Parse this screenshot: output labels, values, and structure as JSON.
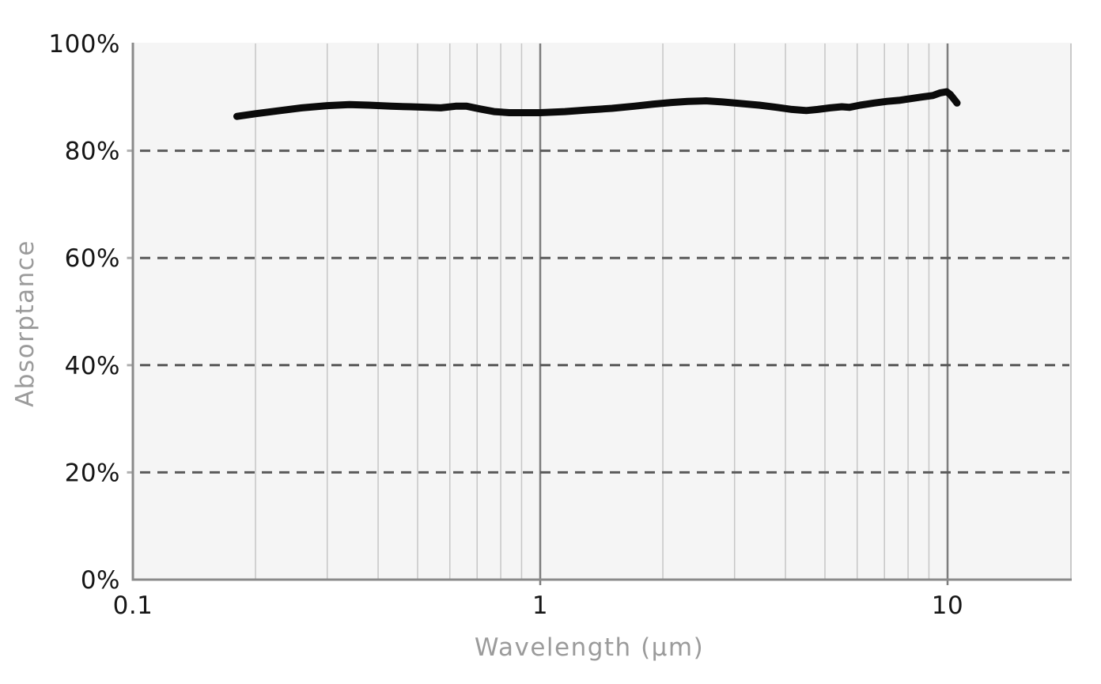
{
  "colors": {
    "page_background": "#ffffff",
    "plot_background": "#f5f5f5",
    "curve": "#0b0b0b",
    "tick_label": "#161616",
    "axis_title": "#9b9b9b",
    "minor_gridline": "#c6c6c6",
    "major_gridline": "#7d7d7d",
    "dashed_gridline": "#5a5a5a",
    "axis_line": "#8a8a8a",
    "right_border": "#c9c9c9",
    "y_tick_mark": "#b0b0b0"
  },
  "chart_data": {
    "type": "line",
    "title": "",
    "xlabel": "Wavelength (μm)",
    "ylabel": "Absorptance",
    "x_scale": "log",
    "x_range": [
      0.1,
      20
    ],
    "y_range": [
      0,
      100
    ],
    "grid": "on",
    "legend": "none",
    "x_major_ticks": [
      {
        "value": 0.1,
        "label": "0.1"
      },
      {
        "value": 1,
        "label": "1"
      },
      {
        "value": 10,
        "label": "10"
      }
    ],
    "x_minor_gridlines": [
      0.2,
      0.3,
      0.4,
      0.5,
      0.6,
      0.7,
      0.8,
      0.9,
      2,
      3,
      4,
      5,
      6,
      7,
      8,
      9
    ],
    "x_major_gridlines": [
      1,
      10
    ],
    "y_ticks": [
      {
        "value": 0,
        "label": "0%"
      },
      {
        "value": 20,
        "label": "20%"
      },
      {
        "value": 40,
        "label": "40%"
      },
      {
        "value": 60,
        "label": "60%"
      },
      {
        "value": 80,
        "label": "80%"
      },
      {
        "value": 100,
        "label": "100%"
      }
    ],
    "y_dashed_gridlines": [
      20,
      40,
      60,
      80
    ],
    "series": [
      {
        "name": "Absorptance",
        "color": "#0b0b0b",
        "stroke_width": 9,
        "points": [
          [
            0.18,
            86.4
          ],
          [
            0.2,
            86.9
          ],
          [
            0.23,
            87.5
          ],
          [
            0.26,
            88.0
          ],
          [
            0.3,
            88.4
          ],
          [
            0.34,
            88.6
          ],
          [
            0.38,
            88.5
          ],
          [
            0.43,
            88.3
          ],
          [
            0.48,
            88.2
          ],
          [
            0.53,
            88.1
          ],
          [
            0.57,
            88.0
          ],
          [
            0.62,
            88.3
          ],
          [
            0.66,
            88.3
          ],
          [
            0.71,
            87.8
          ],
          [
            0.77,
            87.3
          ],
          [
            0.84,
            87.1
          ],
          [
            0.92,
            87.1
          ],
          [
            1.0,
            87.1
          ],
          [
            1.15,
            87.3
          ],
          [
            1.3,
            87.6
          ],
          [
            1.5,
            87.9
          ],
          [
            1.7,
            88.3
          ],
          [
            1.9,
            88.7
          ],
          [
            2.1,
            89.0
          ],
          [
            2.3,
            89.2
          ],
          [
            2.55,
            89.3
          ],
          [
            2.8,
            89.1
          ],
          [
            3.1,
            88.8
          ],
          [
            3.45,
            88.5
          ],
          [
            3.8,
            88.1
          ],
          [
            4.15,
            87.7
          ],
          [
            4.5,
            87.5
          ],
          [
            4.8,
            87.7
          ],
          [
            5.15,
            88.0
          ],
          [
            5.5,
            88.2
          ],
          [
            5.75,
            88.1
          ],
          [
            6.1,
            88.5
          ],
          [
            6.6,
            88.9
          ],
          [
            7.1,
            89.2
          ],
          [
            7.6,
            89.4
          ],
          [
            8.1,
            89.7
          ],
          [
            8.6,
            90.0
          ],
          [
            9.2,
            90.3
          ],
          [
            9.6,
            90.8
          ],
          [
            9.95,
            91.0
          ],
          [
            10.15,
            90.5
          ],
          [
            10.35,
            89.7
          ],
          [
            10.55,
            88.9
          ]
        ]
      }
    ]
  }
}
